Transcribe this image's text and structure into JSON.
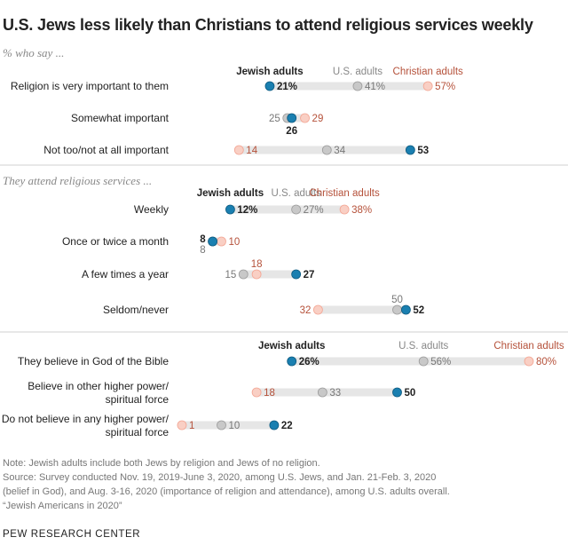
{
  "title": "U.S. Jews less likely than Christians to attend religious services weekly",
  "subtitle": "% who say ...",
  "colors": {
    "jewish": "#1a7fb0",
    "us": "#c8c8c8",
    "christian": "#f9cfc4",
    "christian_text": "#b5513a",
    "track": "#e6e6e6"
  },
  "legend": {
    "jewish": "Jewish adults",
    "us": "U.S. adults",
    "christian": "Christian adults"
  },
  "chart_data": {
    "type": "dot",
    "series": [
      {
        "name": "Jewish adults"
      },
      {
        "name": "U.S. adults"
      },
      {
        "name": "Christian adults"
      }
    ],
    "panels": [
      {
        "subtitle": "",
        "rows": [
          {
            "label": [
              "Religion is very important to them"
            ],
            "jewish": 21,
            "us": 41,
            "christian": 57,
            "pct": true
          },
          {
            "label": [
              "Somewhat important"
            ],
            "jewish": 26,
            "us": 25,
            "christian": 29
          },
          {
            "label": [
              "Not too/not at all important"
            ],
            "jewish": 53,
            "us": 34,
            "christian": 14
          }
        ]
      },
      {
        "subtitle": "They attend religious services ...",
        "rows": [
          {
            "label": [
              "Weekly"
            ],
            "jewish": 12,
            "us": 27,
            "christian": 38,
            "pct": true
          },
          {
            "label": [
              "Once or twice a month"
            ],
            "jewish": 8,
            "us": 8,
            "christian": 10
          },
          {
            "label": [
              "A few times a year"
            ],
            "jewish": 27,
            "us": 15,
            "christian": 18
          },
          {
            "label": [
              "Seldom/never"
            ],
            "jewish": 52,
            "us": 50,
            "christian": 32
          }
        ]
      },
      {
        "subtitle": "",
        "rows": [
          {
            "label": [
              "They believe in God of the Bible"
            ],
            "jewish": 26,
            "us": 56,
            "christian": 80,
            "pct": true
          },
          {
            "label": [
              "Believe in other higher power/",
              "spiritual force"
            ],
            "jewish": 50,
            "us": 33,
            "christian": 18
          },
          {
            "label": [
              "Do not believe in any higher power/",
              "spiritual force"
            ],
            "jewish": 22,
            "us": 10,
            "christian": 1
          }
        ]
      }
    ]
  },
  "note": "Note: Jewish adults include both Jews by religion and Jews of no religion.",
  "source_lines": [
    "Source: Survey conducted Nov. 19, 2019-June 3, 2020, among U.S. Jews, and Jan. 21-Feb. 3, 2020",
    "(belief in God), and Aug. 3-16, 2020 (importance of religion and attendance), among U.S. adults overall.",
    "“Jewish Americans in 2020”"
  ],
  "credit": "PEW RESEARCH CENTER"
}
